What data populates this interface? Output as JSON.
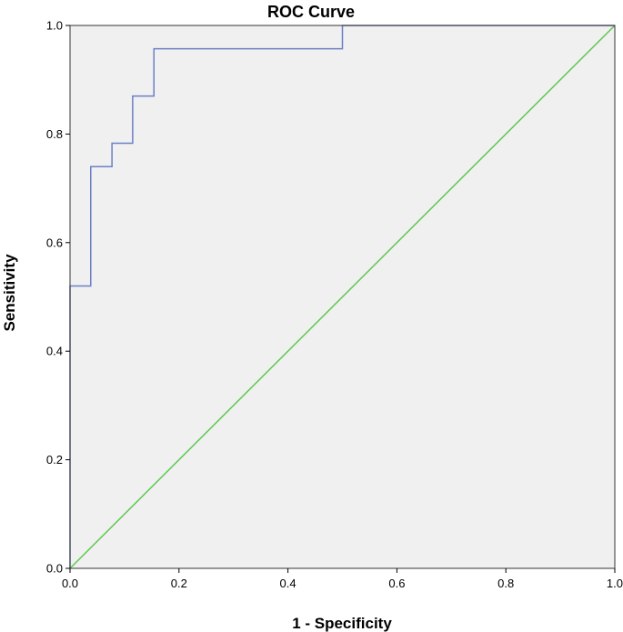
{
  "chart_data": {
    "type": "line",
    "title": "ROC Curve",
    "xlabel": "1 - Specificity",
    "ylabel": "Sensitivity",
    "xlim": [
      0,
      1
    ],
    "ylim": [
      0,
      1
    ],
    "x_ticks": [
      "0.0",
      "0.2",
      "0.4",
      "0.6",
      "0.8",
      "1.0"
    ],
    "y_ticks": [
      "0.0",
      "0.2",
      "0.4",
      "0.6",
      "0.8",
      "1.0"
    ],
    "grid": false,
    "legend": "none",
    "series": [
      {
        "color": "#6b7fc6",
        "step": true,
        "x": [
          0,
          0,
          0.038,
          0.038,
          0.077,
          0.077,
          0.115,
          0.115,
          0.154,
          0.154,
          0.5,
          0.5,
          1.0
        ],
        "y": [
          0,
          0.52,
          0.52,
          0.74,
          0.74,
          0.783,
          0.783,
          0.87,
          0.87,
          0.957,
          0.957,
          1.0,
          1.0
        ]
      },
      {
        "color": "#5ec850",
        "step": false,
        "x": [
          0,
          1
        ],
        "y": [
          0,
          1
        ]
      }
    ],
    "plot_background": "#f0f0f0",
    "frame_color": "#333333"
  }
}
